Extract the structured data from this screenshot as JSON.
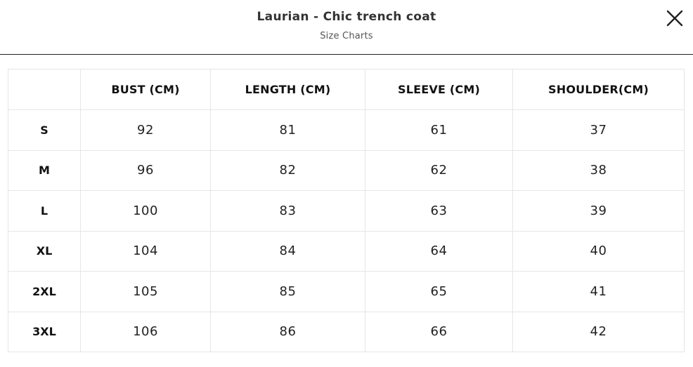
{
  "modal": {
    "title": "Laurian - Chic trench coat",
    "subtitle": "Size Charts",
    "close_icon": "close-icon"
  },
  "table": {
    "corner": "",
    "headers": [
      "BUST (CM)",
      "LENGTH (CM)",
      "SLEEVE (CM)",
      "SHOULDER(CM)"
    ],
    "rows": [
      {
        "size": "S",
        "values": [
          "92",
          "81",
          "61",
          "37"
        ]
      },
      {
        "size": "M",
        "values": [
          "96",
          "82",
          "62",
          "38"
        ]
      },
      {
        "size": "L",
        "values": [
          "100",
          "83",
          "63",
          "39"
        ]
      },
      {
        "size": "XL",
        "values": [
          "104",
          "84",
          "64",
          "40"
        ]
      },
      {
        "size": "2XL",
        "values": [
          "105",
          "85",
          "65",
          "41"
        ]
      },
      {
        "size": "3XL",
        "values": [
          "106",
          "86",
          "66",
          "42"
        ]
      }
    ]
  }
}
